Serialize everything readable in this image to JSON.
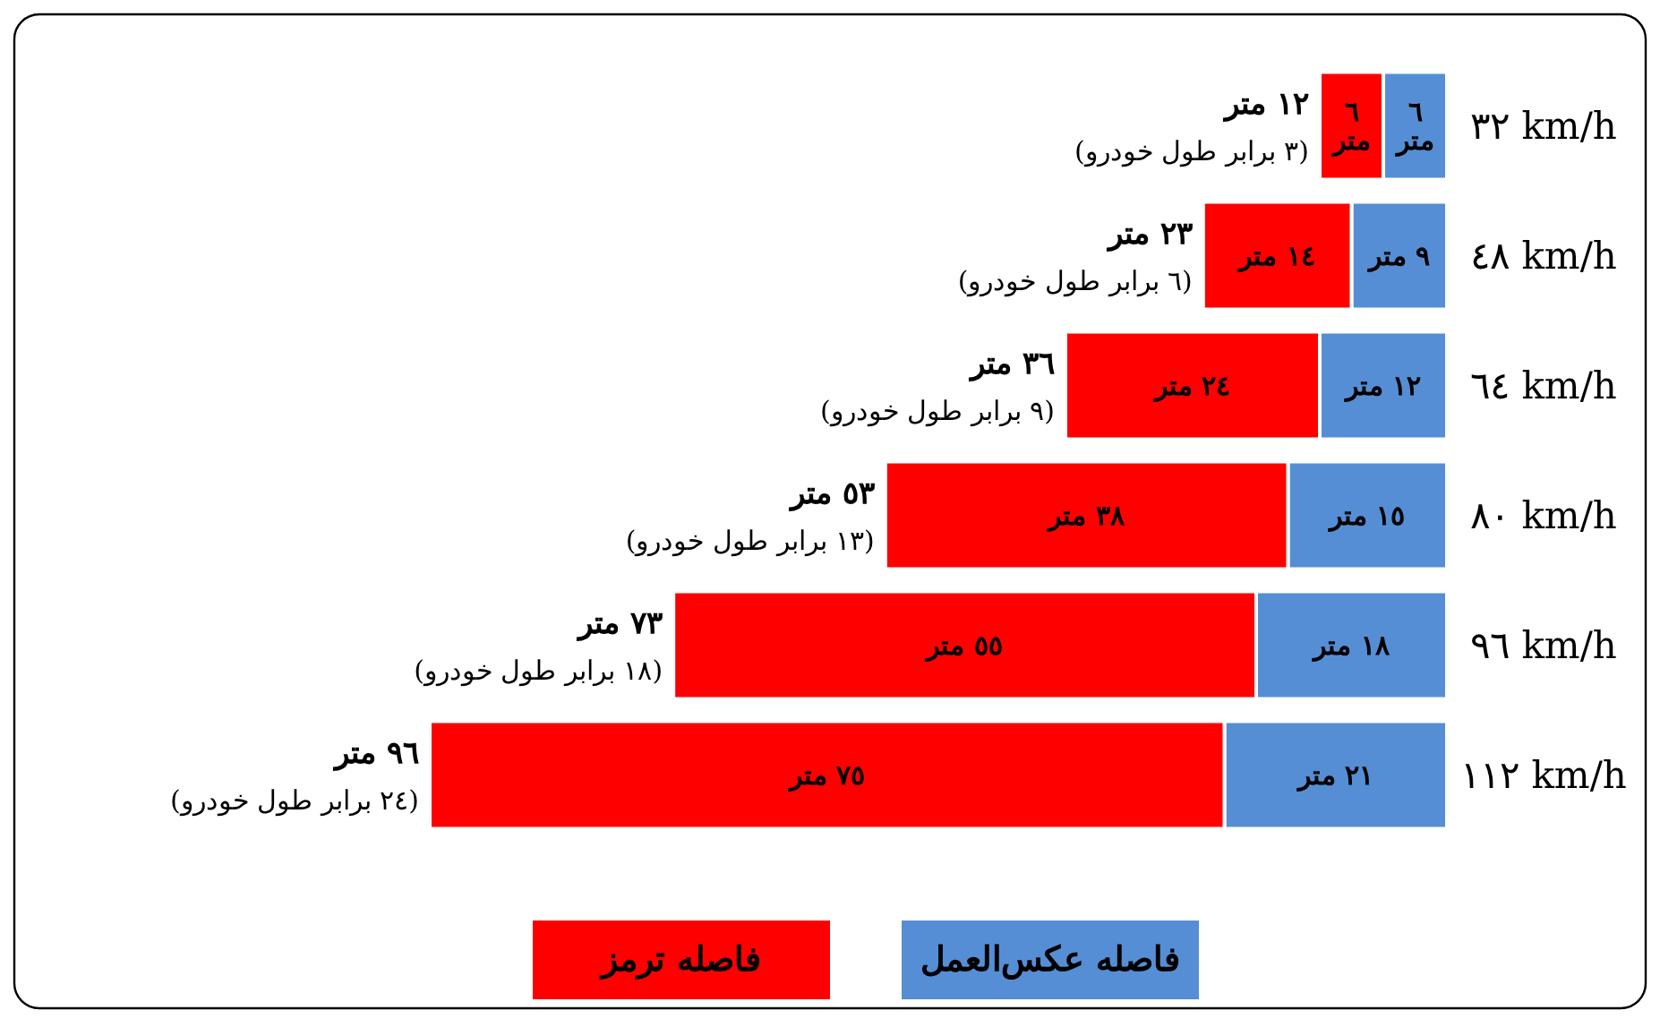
{
  "chart_data": {
    "type": "bar",
    "orientation": "horizontal",
    "stacked": true,
    "legend": "bottom",
    "categories": [
      "٣٢ km/h",
      "٤٨ km/h",
      "٦٤ km/h",
      "٨٠ km/h",
      "٩٦ km/h",
      "١١٢ km/h"
    ],
    "series": [
      {
        "name": "فاصله عکس‌العمل",
        "color": "#558ed5",
        "values": [
          6,
          9,
          12,
          15,
          18,
          21
        ],
        "value_labels": [
          "٦ متر",
          "٩ متر",
          "١٢ متر",
          "١٥ متر",
          "١٨ متر",
          "٢١ متر"
        ]
      },
      {
        "name": "فاصله ترمز",
        "color": "#ff0000",
        "values": [
          6,
          14,
          24,
          38,
          55,
          75
        ],
        "value_labels": [
          "٦ متر",
          "١٤ متر",
          "٢٤ متر",
          "٣٨ متر",
          "٥٥ متر",
          "٧٥ متر"
        ]
      }
    ],
    "totals": [
      "١٢ متر",
      "٢٣ متر",
      "٣٦ متر",
      "٥٣ متر",
      "٧٣ متر",
      "٩٦ متر"
    ],
    "annotations": [
      "(٣ برابر طول خودرو)",
      "(٦ برابر طول خودرو)",
      "(٩ برابر طول خودرو)",
      "(١٣ برابر طول خودرو)",
      "(١٨ برابر طول خودرو)",
      "(٢٤ برابر طول خودرو)"
    ]
  }
}
